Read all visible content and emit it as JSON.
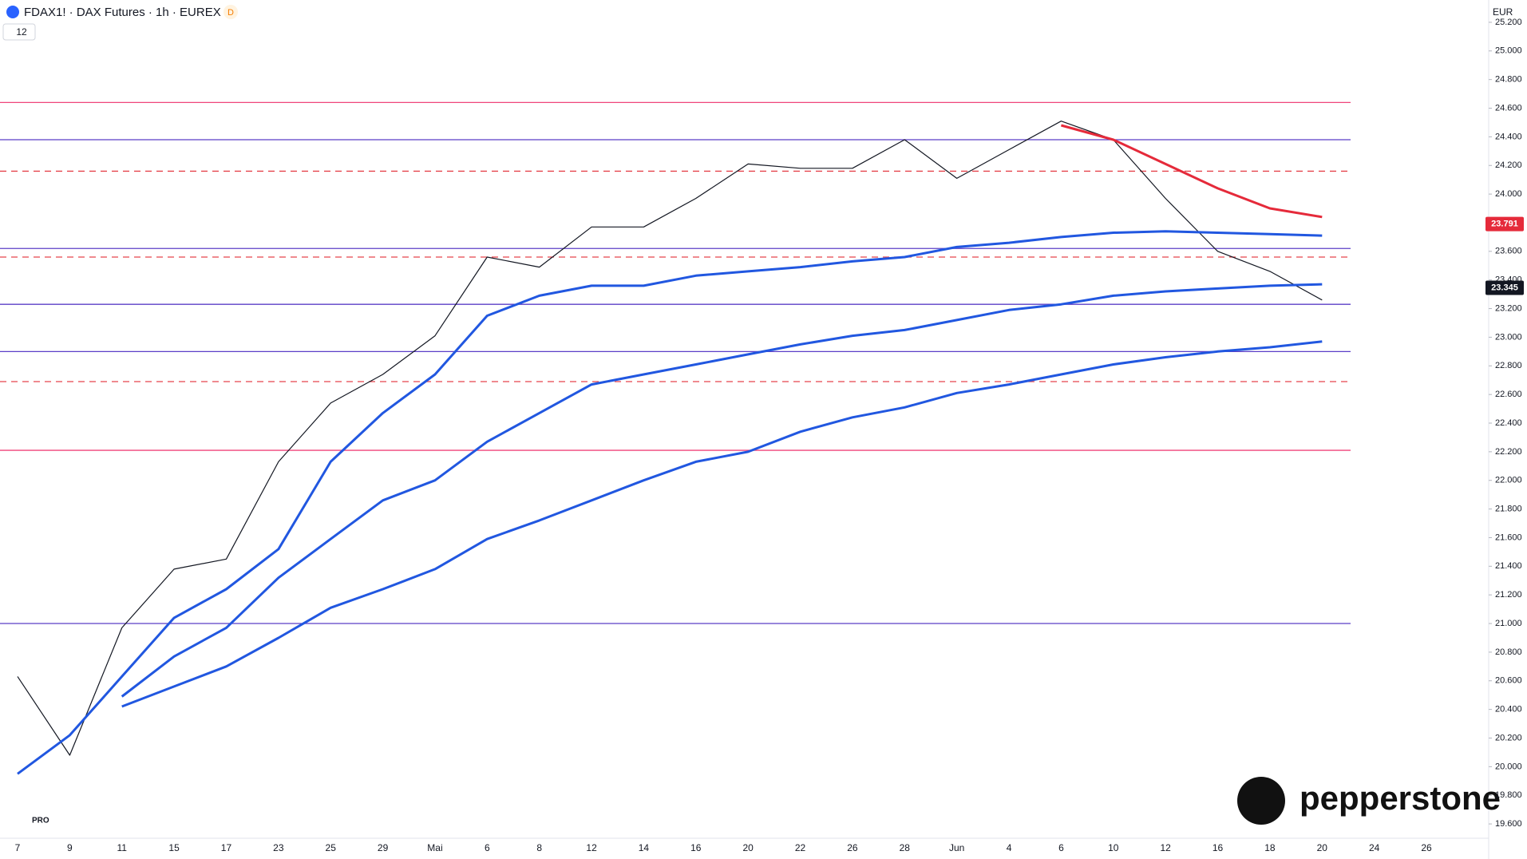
{
  "header": {
    "symbol": "FDAX1! · DAX Futures · 1h · EUREX",
    "badge": "D",
    "indicators": "12",
    "currency": "EUR",
    "watermark": "pepperstone",
    "tv_badge": "PRO"
  },
  "chart_data": {
    "type": "line",
    "categories": [
      "7",
      "9",
      "11",
      "15",
      "17",
      "23",
      "25",
      "29",
      "Mai",
      "6",
      "8",
      "12",
      "14",
      "16",
      "20",
      "22",
      "26",
      "28",
      "Jun",
      "4",
      "6",
      "10",
      "12",
      "16",
      "18",
      "20",
      "24",
      "26"
    ],
    "series": [
      {
        "color": "#131722",
        "width": 1.2,
        "values": [
          20630,
          20080,
          20970,
          21380,
          21450,
          22130,
          22540,
          22740,
          23010,
          23560,
          23490,
          23770,
          23770,
          23970,
          24210,
          24180,
          24180,
          24380,
          24110,
          24310,
          24510,
          24380,
          23970,
          23600,
          23460,
          23260,
          null,
          null
        ]
      },
      {
        "color": "#2157e0",
        "width": 3,
        "values": [
          19950,
          20220,
          20630,
          21040,
          21240,
          21520,
          22130,
          22470,
          22740,
          23150,
          23290,
          23360,
          23360,
          23430,
          23460,
          23490,
          23530,
          23560,
          23630,
          23660,
          23700,
          23730,
          23740,
          23730,
          23720,
          23710,
          null,
          null
        ]
      },
      {
        "color": "#2157e0",
        "width": 3,
        "values": [
          null,
          null,
          20490,
          20770,
          20970,
          21320,
          21590,
          21860,
          22000,
          22270,
          22470,
          22670,
          22740,
          22810,
          22880,
          22950,
          23010,
          23050,
          23120,
          23190,
          23230,
          23290,
          23320,
          23340,
          23360,
          23370,
          null,
          null
        ]
      },
      {
        "color": "#2157e0",
        "width": 3,
        "values": [
          null,
          null,
          20420,
          20560,
          20700,
          20900,
          21110,
          21240,
          21380,
          21590,
          21720,
          21860,
          22000,
          22130,
          22200,
          22340,
          22440,
          22510,
          22610,
          22670,
          22740,
          22810,
          22860,
          22900,
          22930,
          22970,
          null,
          null
        ]
      },
      {
        "color": "#e52a3a",
        "width": 3,
        "values": [
          null,
          null,
          null,
          null,
          null,
          null,
          null,
          null,
          null,
          null,
          null,
          null,
          null,
          null,
          null,
          null,
          null,
          null,
          null,
          null,
          24480,
          24380,
          24210,
          24040,
          23900,
          23840,
          null,
          null
        ]
      }
    ],
    "levels": [
      {
        "value": 24640,
        "color": "#f0457a",
        "dashed": false
      },
      {
        "value": 24380,
        "color": "#5b3fc7",
        "dashed": false
      },
      {
        "value": 24160,
        "color": "#e5434c",
        "dashed": true
      },
      {
        "value": 23620,
        "color": "#5b3fc7",
        "dashed": false
      },
      {
        "value": 23560,
        "color": "#e5434c",
        "dashed": true
      },
      {
        "value": 23230,
        "color": "#5b3fc7",
        "dashed": false
      },
      {
        "value": 22900,
        "color": "#5b3fc7",
        "dashed": false
      },
      {
        "value": 22690,
        "color": "#e5434c",
        "dashed": true
      },
      {
        "value": 22210,
        "color": "#f0457a",
        "dashed": false
      },
      {
        "value": 21000,
        "color": "#5b3fc7",
        "dashed": false
      }
    ],
    "price_labels": [
      {
        "value": 23791,
        "label": "23.791",
        "color": "#e52a3a"
      },
      {
        "value": 23345,
        "label": "23.345",
        "color": "#131722"
      }
    ],
    "ylim": [
      19500,
      25300
    ],
    "yticks": [
      {
        "value": 25200,
        "label": "25.200"
      },
      {
        "value": 25000,
        "label": "25.000"
      },
      {
        "value": 24800,
        "label": "24.800"
      },
      {
        "value": 24600,
        "label": "24.600"
      },
      {
        "value": 24400,
        "label": "24.400"
      },
      {
        "value": 24200,
        "label": "24.200"
      },
      {
        "value": 24000,
        "label": "24.000"
      },
      {
        "value": 23800,
        "label": "23.800"
      },
      {
        "value": 23600,
        "label": "23.600"
      },
      {
        "value": 23400,
        "label": "23.400"
      },
      {
        "value": 23200,
        "label": "23.200"
      },
      {
        "value": 23000,
        "label": "23.000"
      },
      {
        "value": 22800,
        "label": "22.800"
      },
      {
        "value": 22600,
        "label": "22.600"
      },
      {
        "value": 22400,
        "label": "22.400"
      },
      {
        "value": 22200,
        "label": "22.200"
      },
      {
        "value": 22000,
        "label": "22.000"
      },
      {
        "value": 21800,
        "label": "21.800"
      },
      {
        "value": 21600,
        "label": "21.600"
      },
      {
        "value": 21400,
        "label": "21.400"
      },
      {
        "value": 21200,
        "label": "21.200"
      },
      {
        "value": 21000,
        "label": "21.000"
      },
      {
        "value": 20800,
        "label": "20.800"
      },
      {
        "value": 20600,
        "label": "20.600"
      },
      {
        "value": 20400,
        "label": "20.400"
      },
      {
        "value": 20200,
        "label": "20.200"
      },
      {
        "value": 20000,
        "label": "20.000"
      },
      {
        "value": 19800,
        "label": "19.800"
      },
      {
        "value": 19600,
        "label": "19.600"
      }
    ],
    "grid": false
  }
}
